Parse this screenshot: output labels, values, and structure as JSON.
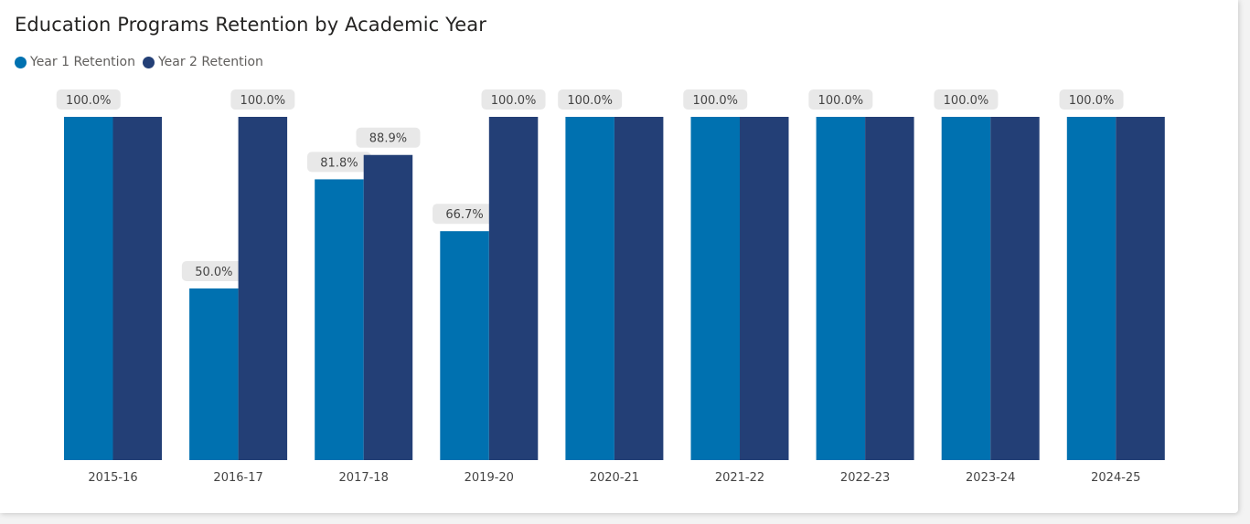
{
  "chart_data": {
    "type": "bar",
    "title": "Education Programs Retention by Academic Year",
    "xlabel": "",
    "ylabel": "",
    "ylim": [
      0,
      100
    ],
    "grid": false,
    "legend_position": "top-left",
    "categories": [
      "2015-16",
      "2016-17",
      "2017-18",
      "2019-20",
      "2020-21",
      "2021-22",
      "2022-23",
      "2023-24",
      "2024-25"
    ],
    "series": [
      {
        "name": "Year 1 Retention",
        "color": "#0071b0",
        "values": [
          100,
          50,
          81.8,
          66.7,
          100,
          100,
          100,
          100,
          100
        ],
        "labels": [
          "100.0%",
          "50.0%",
          "81.8%",
          "66.7%",
          "100.0%",
          "100.0%",
          "100.0%",
          "100.0%",
          "100.0%"
        ],
        "label_shown": [
          true,
          true,
          true,
          true,
          true,
          true,
          true,
          true,
          true
        ]
      },
      {
        "name": "Year 2 Retention",
        "color": "#233f76",
        "values": [
          100,
          100,
          88.9,
          100,
          100,
          100,
          100,
          100,
          100
        ],
        "labels": [
          "100.0%",
          "100.0%",
          "88.9%",
          "100.0%",
          "100.0%",
          "100.0%",
          "100.0%",
          "100.0%",
          "100.0%"
        ],
        "label_shown": [
          false,
          true,
          true,
          true,
          false,
          false,
          false,
          false,
          false
        ]
      }
    ]
  }
}
